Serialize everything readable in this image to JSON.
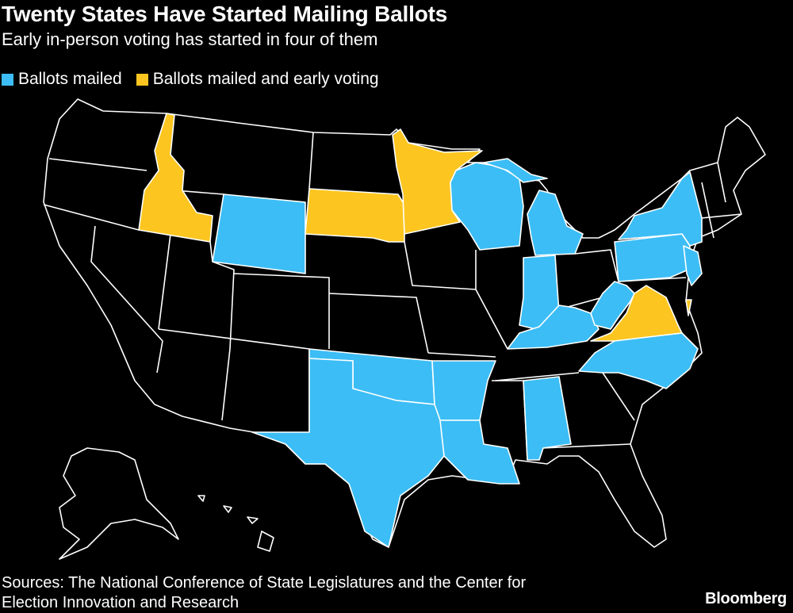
{
  "header": {
    "title": "Twenty States Have Started Mailing Ballots",
    "subtitle": "Early in-person voting has started in four of them"
  },
  "legend": [
    {
      "label": "Ballots mailed",
      "color": "#3cbdf5"
    },
    {
      "label": "Ballots mailed and early voting",
      "color": "#fcc520"
    }
  ],
  "footer": {
    "source": [
      "Sources: The National Conference of State Legislatures and the Center for",
      "Election Innovation and Research"
    ],
    "brand": "Bloomberg"
  }
}
